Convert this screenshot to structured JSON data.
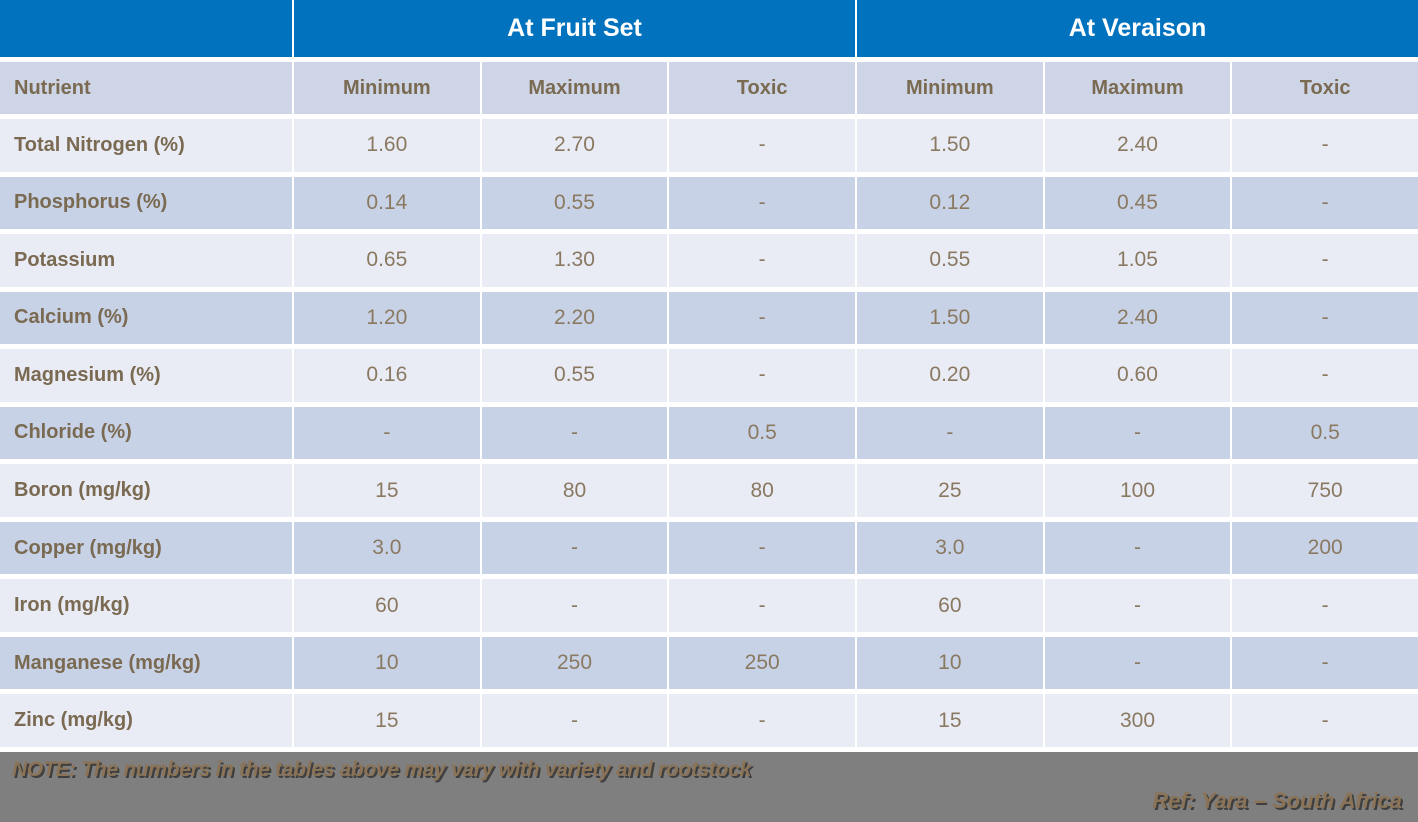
{
  "colors": {
    "header_blue": "#0072BE",
    "header_row_bg": "#CED5E6",
    "row_light": "#E9EBF5",
    "row_dark": "#C8D2E6",
    "header_text": "#7A6A52",
    "text_brown": "#8A7961",
    "footer_gray": "#7F7F7F",
    "footer_text": "#8A7356"
  },
  "table": {
    "group_headers": [
      {
        "label": "",
        "span": 1
      },
      {
        "label": "At Fruit Set",
        "span": 3
      },
      {
        "label": "At Veraison",
        "span": 3
      }
    ],
    "column_headers": [
      "Nutrient",
      "Minimum",
      "Maximum",
      "Toxic",
      "Minimum",
      "Maximum",
      "Toxic"
    ],
    "rows": [
      {
        "nutrient": "Total Nitrogen (%)",
        "values": [
          "1.60",
          "2.70",
          "-",
          "1.50",
          "2.40",
          "-"
        ]
      },
      {
        "nutrient": "Phosphorus (%)",
        "values": [
          "0.14",
          "0.55",
          "-",
          "0.12",
          "0.45",
          "-"
        ]
      },
      {
        "nutrient": "Potassium",
        "values": [
          "0.65",
          "1.30",
          "-",
          "0.55",
          "1.05",
          "-"
        ]
      },
      {
        "nutrient": "Calcium (%)",
        "values": [
          "1.20",
          "2.20",
          "-",
          "1.50",
          "2.40",
          "-"
        ]
      },
      {
        "nutrient": "Magnesium (%)",
        "values": [
          "0.16",
          "0.55",
          "-",
          "0.20",
          "0.60",
          "-"
        ]
      },
      {
        "nutrient": "Chloride (%)",
        "values": [
          "-",
          "-",
          "0.5",
          "-",
          "-",
          "0.5"
        ]
      },
      {
        "nutrient": "Boron (mg/kg)",
        "values": [
          "15",
          "80",
          "80",
          "25",
          "100",
          "750"
        ]
      },
      {
        "nutrient": "Copper (mg/kg)",
        "values": [
          "3.0",
          "-",
          "-",
          "3.0",
          "-",
          "200"
        ]
      },
      {
        "nutrient": "Iron (mg/kg)",
        "values": [
          "60",
          "-",
          "-",
          "60",
          "-",
          "-"
        ]
      },
      {
        "nutrient": "Manganese (mg/kg)",
        "values": [
          "10",
          "250",
          "250",
          "10",
          "-",
          "-"
        ]
      },
      {
        "nutrient": "Zinc (mg/kg)",
        "values": [
          "15",
          "-",
          "-",
          "15",
          "300",
          "-"
        ]
      }
    ]
  },
  "footer": {
    "note": "NOTE: The numbers in the tables above may vary with variety and rootstock",
    "reference": "Ref: Yara – South Africa"
  }
}
